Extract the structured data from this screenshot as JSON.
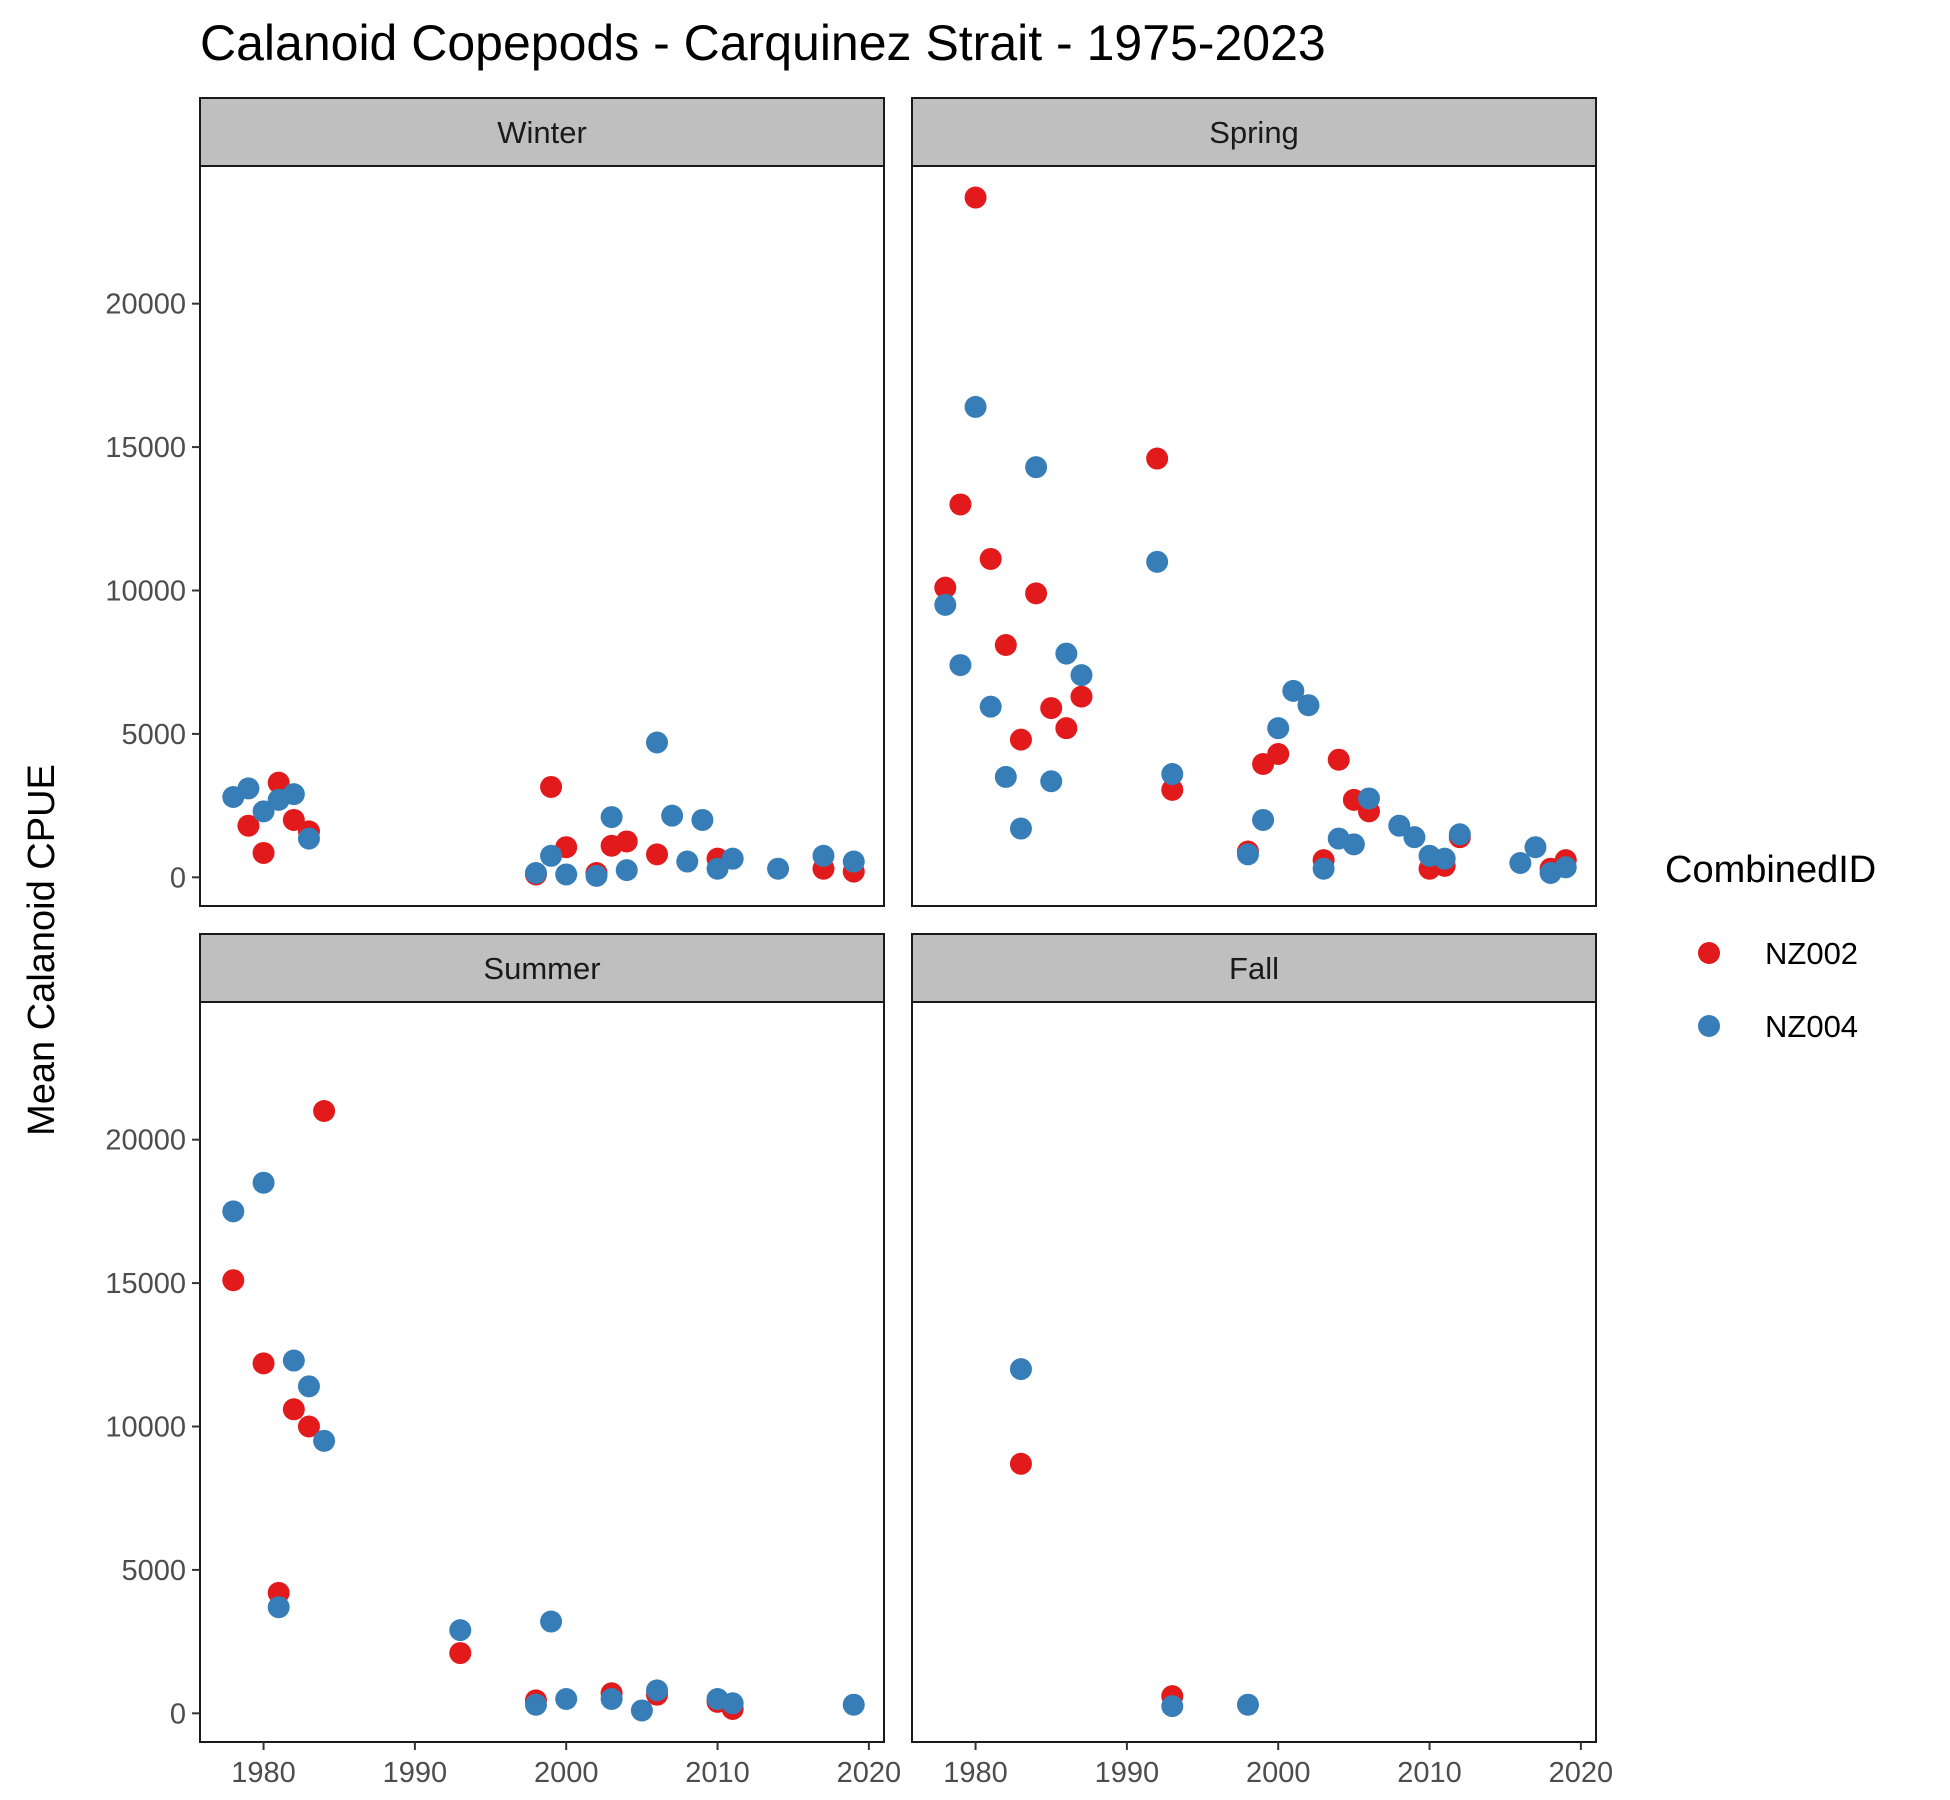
{
  "chart_data": {
    "type": "scatter",
    "title": "Calanoid Copepods - Carquinez Strait - 1975-2023",
    "ylabel": "Mean Calanoid CPUE",
    "xlabel": "",
    "facet_order": [
      "Winter",
      "Spring",
      "Summer",
      "Fall"
    ],
    "xlim": [
      1975.8,
      2021
    ],
    "ylim": [
      -1000,
      24800
    ],
    "x_ticks": [
      1980,
      1990,
      2000,
      2010,
      2020
    ],
    "x_tick_labels": [
      "1980",
      "1990",
      "2000",
      "2010",
      "2020"
    ],
    "y_ticks": [
      0,
      5000,
      10000,
      15000,
      20000
    ],
    "y_tick_labels": [
      "0",
      "5000",
      "10000",
      "15000",
      "20000"
    ],
    "legend": {
      "title": "CombinedID",
      "placement": "right",
      "entries": [
        {
          "label": "NZ002",
          "color": "#e31a1c"
        },
        {
          "label": "NZ004",
          "color": "#377eb8"
        }
      ]
    },
    "series": [
      {
        "name": "NZ002",
        "color": "#e31a1c",
        "data": {
          "Winter": [
            [
              1979,
              1800
            ],
            [
              1980,
              850
            ],
            [
              1981,
              3300
            ],
            [
              1982,
              2000
            ],
            [
              1983,
              1600
            ],
            [
              1998,
              100
            ],
            [
              1999,
              3150
            ],
            [
              2000,
              1050
            ],
            [
              2002,
              150
            ],
            [
              2003,
              1100
            ],
            [
              2004,
              1250
            ],
            [
              2006,
              800
            ],
            [
              2010,
              650
            ],
            [
              2017,
              300
            ],
            [
              2019,
              200
            ]
          ],
          "Spring": [
            [
              1978,
              10100
            ],
            [
              1979,
              13000
            ],
            [
              1980,
              23700
            ],
            [
              1981,
              11100
            ],
            [
              1982,
              8100
            ],
            [
              1983,
              4800
            ],
            [
              1984,
              9900
            ],
            [
              1985,
              5900
            ],
            [
              1986,
              5200
            ],
            [
              1987,
              6300
            ],
            [
              1992,
              14600
            ],
            [
              1993,
              3050
            ],
            [
              1998,
              900
            ],
            [
              1999,
              3950
            ],
            [
              2000,
              4300
            ],
            [
              2003,
              600
            ],
            [
              2004,
              4100
            ],
            [
              2005,
              2700
            ],
            [
              2006,
              2300
            ],
            [
              2010,
              300
            ],
            [
              2011,
              400
            ],
            [
              2012,
              1400
            ],
            [
              2018,
              300
            ],
            [
              2019,
              600
            ]
          ],
          "Summer": [
            [
              1978,
              15100
            ],
            [
              1980,
              12200
            ],
            [
              1981,
              4200
            ],
            [
              1982,
              10600
            ],
            [
              1983,
              10000
            ],
            [
              1984,
              21000
            ],
            [
              1993,
              2100
            ],
            [
              1998,
              450
            ],
            [
              2003,
              700
            ],
            [
              2006,
              650
            ],
            [
              2010,
              400
            ],
            [
              2011,
              150
            ]
          ],
          "Fall": [
            [
              1983,
              8700
            ],
            [
              1993,
              600
            ]
          ]
        }
      },
      {
        "name": "NZ004",
        "color": "#377eb8",
        "data": {
          "Winter": [
            [
              1978,
              2800
            ],
            [
              1979,
              3100
            ],
            [
              1980,
              2300
            ],
            [
              1981,
              2700
            ],
            [
              1982,
              2900
            ],
            [
              1983,
              1350
            ],
            [
              1998,
              150
            ],
            [
              1999,
              750
            ],
            [
              2000,
              100
            ],
            [
              2002,
              50
            ],
            [
              2003,
              2100
            ],
            [
              2004,
              250
            ],
            [
              2006,
              4700
            ],
            [
              2007,
              2150
            ],
            [
              2008,
              550
            ],
            [
              2009,
              2000
            ],
            [
              2010,
              300
            ],
            [
              2011,
              650
            ],
            [
              2014,
              300
            ],
            [
              2017,
              750
            ],
            [
              2019,
              550
            ]
          ],
          "Spring": [
            [
              1978,
              9500
            ],
            [
              1979,
              7400
            ],
            [
              1980,
              16400
            ],
            [
              1981,
              5950
            ],
            [
              1982,
              3500
            ],
            [
              1983,
              1700
            ],
            [
              1984,
              14300
            ],
            [
              1985,
              3350
            ],
            [
              1986,
              7800
            ],
            [
              1987,
              7050
            ],
            [
              1992,
              11000
            ],
            [
              1993,
              3600
            ],
            [
              1998,
              800
            ],
            [
              1999,
              2000
            ],
            [
              2000,
              5200
            ],
            [
              2001,
              6500
            ],
            [
              2002,
              6000
            ],
            [
              2003,
              300
            ],
            [
              2004,
              1350
            ],
            [
              2005,
              1150
            ],
            [
              2006,
              2750
            ],
            [
              2008,
              1800
            ],
            [
              2009,
              1400
            ],
            [
              2010,
              750
            ],
            [
              2011,
              650
            ],
            [
              2012,
              1500
            ],
            [
              2016,
              500
            ],
            [
              2017,
              1050
            ],
            [
              2018,
              150
            ],
            [
              2019,
              350
            ]
          ],
          "Summer": [
            [
              1978,
              17500
            ],
            [
              1980,
              18500
            ],
            [
              1981,
              3700
            ],
            [
              1982,
              12300
            ],
            [
              1983,
              11400
            ],
            [
              1984,
              9500
            ],
            [
              1993,
              2900
            ],
            [
              1998,
              300
            ],
            [
              1999,
              3200
            ],
            [
              2000,
              500
            ],
            [
              2003,
              500
            ],
            [
              2005,
              100
            ],
            [
              2006,
              800
            ],
            [
              2010,
              500
            ],
            [
              2011,
              350
            ],
            [
              2019,
              300
            ]
          ],
          "Fall": [
            [
              1983,
              12000
            ],
            [
              1993,
              250
            ],
            [
              1998,
              300
            ]
          ]
        }
      }
    ]
  }
}
